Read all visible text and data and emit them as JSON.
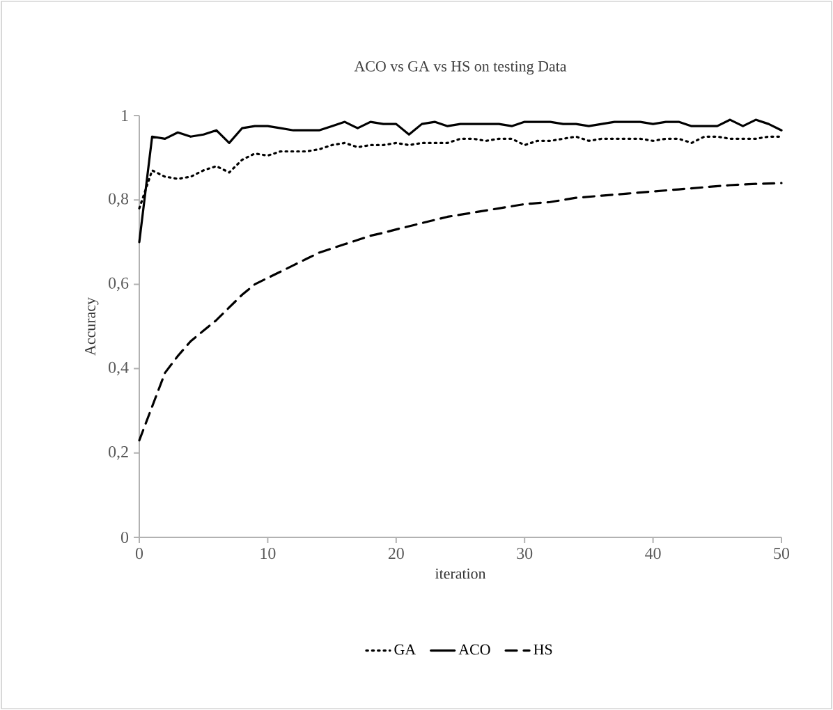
{
  "chart_data": {
    "type": "line",
    "title": "ACO vs GA vs HS on testing Data",
    "xlabel": "iteration",
    "ylabel": "Accuracy",
    "x": [
      0,
      1,
      2,
      3,
      4,
      5,
      6,
      7,
      8,
      9,
      10,
      11,
      12,
      13,
      14,
      15,
      16,
      17,
      18,
      19,
      20,
      21,
      22,
      23,
      24,
      25,
      26,
      27,
      28,
      29,
      30,
      31,
      32,
      33,
      34,
      35,
      36,
      37,
      38,
      39,
      40,
      41,
      42,
      43,
      44,
      45,
      46,
      47,
      48,
      49,
      50
    ],
    "xlim": [
      0,
      50
    ],
    "xticks": [
      0,
      10,
      20,
      30,
      40,
      50
    ],
    "ylim": [
      0,
      1
    ],
    "yticks": [
      0,
      {
        "value": 0.2,
        "label": "0,2"
      },
      {
        "value": 0.4,
        "label": "0,4"
      },
      {
        "value": 0.6,
        "label": "0,6"
      },
      {
        "value": 0.8,
        "label": "0,8"
      },
      1
    ],
    "grid": false,
    "legend": "bottom",
    "marker": "none",
    "series": [
      {
        "name": "GA",
        "color": "#000000",
        "line_style": "dotted",
        "values": [
          0.78,
          0.87,
          0.855,
          0.85,
          0.855,
          0.87,
          0.88,
          0.865,
          0.895,
          0.91,
          0.905,
          0.915,
          0.915,
          0.915,
          0.92,
          0.93,
          0.935,
          0.925,
          0.93,
          0.93,
          0.935,
          0.93,
          0.935,
          0.935,
          0.935,
          0.945,
          0.945,
          0.94,
          0.945,
          0.945,
          0.93,
          0.94,
          0.94,
          0.945,
          0.95,
          0.94,
          0.945,
          0.945,
          0.945,
          0.945,
          0.94,
          0.945,
          0.945,
          0.935,
          0.95,
          0.95,
          0.945,
          0.945,
          0.945,
          0.95,
          0.95
        ]
      },
      {
        "name": "ACO",
        "color": "#000000",
        "line_style": "solid",
        "values": [
          0.7,
          0.95,
          0.945,
          0.96,
          0.95,
          0.955,
          0.965,
          0.935,
          0.97,
          0.975,
          0.975,
          0.97,
          0.965,
          0.965,
          0.965,
          0.975,
          0.985,
          0.97,
          0.985,
          0.98,
          0.98,
          0.955,
          0.98,
          0.985,
          0.975,
          0.98,
          0.98,
          0.98,
          0.98,
          0.975,
          0.985,
          0.985,
          0.985,
          0.98,
          0.98,
          0.975,
          0.98,
          0.985,
          0.985,
          0.985,
          0.98,
          0.985,
          0.985,
          0.975,
          0.975,
          0.975,
          0.99,
          0.975,
          0.99,
          0.98,
          0.965
        ]
      },
      {
        "name": "HS",
        "color": "#000000",
        "line_style": "dashed",
        "x": [
          0,
          1,
          2,
          3,
          4,
          5,
          6,
          7,
          8,
          9,
          10,
          11,
          12,
          13,
          14,
          15,
          16,
          17,
          18,
          19,
          20,
          22,
          24,
          26,
          28,
          30,
          32,
          34,
          36,
          38,
          40,
          42,
          44,
          46,
          48,
          50
        ],
        "values": [
          0.23,
          0.31,
          0.39,
          0.43,
          0.465,
          0.49,
          0.515,
          0.545,
          0.575,
          0.6,
          0.615,
          0.63,
          0.645,
          0.66,
          0.675,
          0.685,
          0.695,
          0.705,
          0.715,
          0.722,
          0.73,
          0.745,
          0.76,
          0.77,
          0.78,
          0.79,
          0.795,
          0.805,
          0.81,
          0.815,
          0.82,
          0.825,
          0.83,
          0.835,
          0.838,
          0.84
        ]
      }
    ]
  }
}
